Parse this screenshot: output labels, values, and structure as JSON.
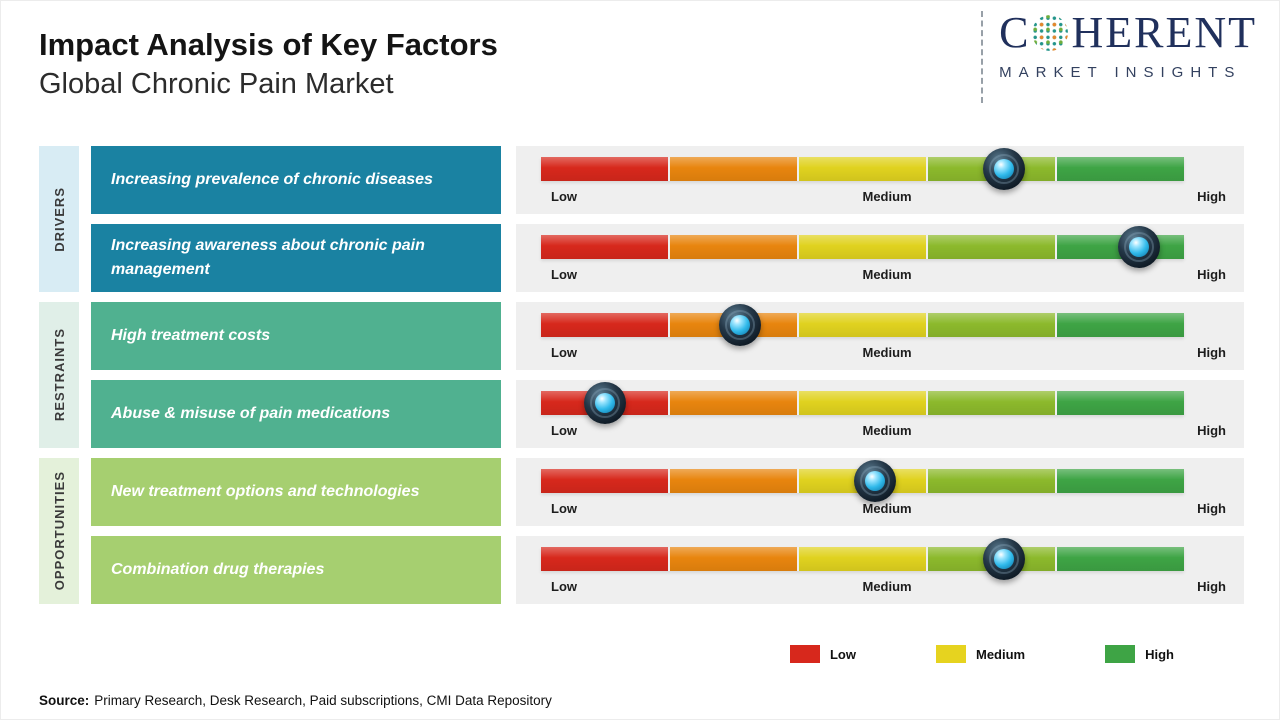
{
  "header": {
    "title": "Impact Analysis of Key Factors",
    "subtitle": "Global Chronic Pain Market"
  },
  "logo": {
    "word_start": "C",
    "word_end": "HERENT",
    "tagline": "MARKET INSIGHTS"
  },
  "chart_data": {
    "type": "impact-scale",
    "title": "Impact Analysis of Key Factors - Global Chronic Pain Market",
    "scale_labels": [
      "Low",
      "Medium",
      "High"
    ],
    "scale_range": [
      0,
      100
    ],
    "segment_colors": [
      "#d7281c",
      "#e8850e",
      "#e0d21f",
      "#8cb92c",
      "#3ea445"
    ],
    "groups": [
      {
        "name": "DRIVERS",
        "factor_color": "#1a82a2",
        "strip_color": "#d8ecf4",
        "factors": [
          {
            "label": "Increasing prevalence of chronic diseases",
            "impact_pct": 72
          },
          {
            "label": "Increasing awareness about chronic pain management",
            "impact_pct": 93
          }
        ]
      },
      {
        "name": "RESTRAINTS",
        "factor_color": "#50b190",
        "strip_color": "#e0efe8",
        "factors": [
          {
            "label": "High treatment costs",
            "impact_pct": 31
          },
          {
            "label": "Abuse & misuse of pain medications",
            "impact_pct": 10
          }
        ]
      },
      {
        "name": "OPPORTUNITIES",
        "factor_color": "#a6cf70",
        "strip_color": "#e4f1da",
        "factors": [
          {
            "label": "New treatment options and technologies",
            "impact_pct": 52
          },
          {
            "label": "Combination drug therapies",
            "impact_pct": 72
          }
        ]
      }
    ],
    "legend": [
      {
        "label": "Low",
        "color": "#d7281c"
      },
      {
        "label": "Medium",
        "color": "#e6d31f"
      },
      {
        "label": "High",
        "color": "#3ea445"
      }
    ]
  },
  "footer": {
    "source_prefix": "Source:",
    "source_text": "Primary Research, Desk Research, Paid subscriptions, CMI Data Repository"
  }
}
